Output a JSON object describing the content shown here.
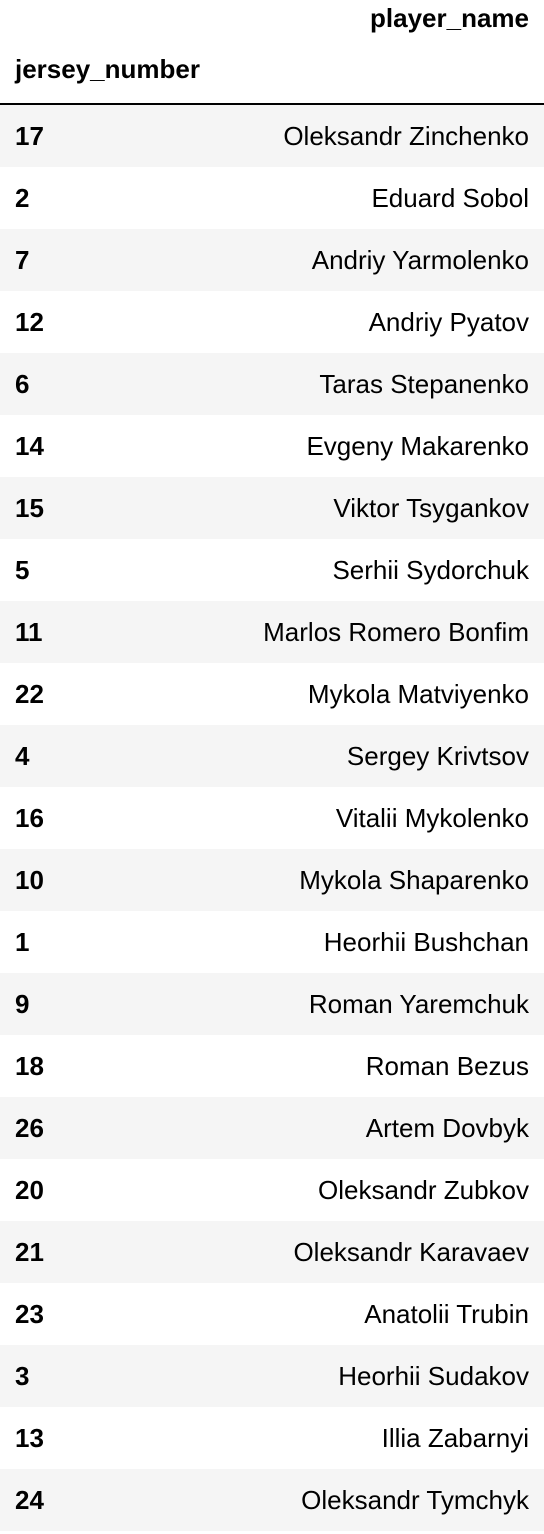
{
  "table": {
    "column_header": "player_name",
    "index_header": "jersey_number",
    "rows": [
      {
        "jersey_number": "17",
        "player_name": "Oleksandr Zinchenko"
      },
      {
        "jersey_number": "2",
        "player_name": "Eduard Sobol"
      },
      {
        "jersey_number": "7",
        "player_name": "Andriy Yarmolenko"
      },
      {
        "jersey_number": "12",
        "player_name": "Andriy Pyatov"
      },
      {
        "jersey_number": "6",
        "player_name": "Taras Stepanenko"
      },
      {
        "jersey_number": "14",
        "player_name": "Evgeny Makarenko"
      },
      {
        "jersey_number": "15",
        "player_name": "Viktor Tsygankov"
      },
      {
        "jersey_number": "5",
        "player_name": "Serhii Sydorchuk"
      },
      {
        "jersey_number": "11",
        "player_name": "Marlos Romero Bonfim"
      },
      {
        "jersey_number": "22",
        "player_name": "Mykola Matviyenko"
      },
      {
        "jersey_number": "4",
        "player_name": "Sergey Krivtsov"
      },
      {
        "jersey_number": "16",
        "player_name": "Vitalii Mykolenko"
      },
      {
        "jersey_number": "10",
        "player_name": "Mykola Shaparenko"
      },
      {
        "jersey_number": "1",
        "player_name": "Heorhii Bushchan"
      },
      {
        "jersey_number": "9",
        "player_name": "Roman Yaremchuk"
      },
      {
        "jersey_number": "18",
        "player_name": "Roman Bezus"
      },
      {
        "jersey_number": "26",
        "player_name": "Artem Dovbyk"
      },
      {
        "jersey_number": "20",
        "player_name": "Oleksandr Zubkov"
      },
      {
        "jersey_number": "21",
        "player_name": "Oleksandr Karavaev"
      },
      {
        "jersey_number": "23",
        "player_name": "Anatolii Trubin"
      },
      {
        "jersey_number": "3",
        "player_name": "Heorhii Sudakov"
      },
      {
        "jersey_number": "13",
        "player_name": "Illia Zabarnyi"
      },
      {
        "jersey_number": "24",
        "player_name": "Oleksandr Tymchyk"
      }
    ]
  }
}
